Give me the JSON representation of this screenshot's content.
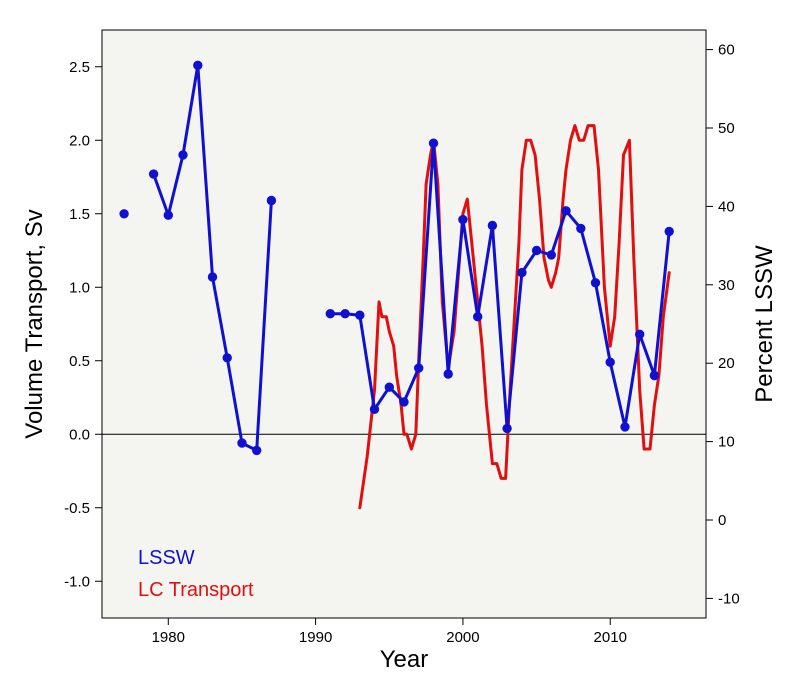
{
  "chart_data": {
    "type": "line",
    "xlabel": "Year",
    "ylabel_left": "Volume Transport, Sv",
    "ylabel_right": "Percent LSSW",
    "xlim": [
      1975.5,
      2016.5
    ],
    "ylim_left": [
      -1.25,
      2.75
    ],
    "ylim_right": [
      -12.5,
      62.5
    ],
    "x_ticks": [
      1980,
      1990,
      2000,
      2010
    ],
    "x_tick_labels": [
      "1980",
      "1990",
      "2000",
      "2010"
    ],
    "y_left_ticks": [
      -1.0,
      -0.5,
      0.0,
      0.5,
      1.0,
      1.5,
      2.0,
      2.5
    ],
    "y_left_tick_labels": [
      "-1.0",
      "-0.5",
      "0.0",
      "0.5",
      "1.0",
      "1.5",
      "2.0",
      "2.5"
    ],
    "y_right_ticks": [
      -10,
      0,
      10,
      20,
      30,
      40,
      50,
      60
    ],
    "y_right_tick_labels": [
      "-10",
      "0",
      "10",
      "20",
      "30",
      "40",
      "50",
      "60"
    ],
    "zero_line": 0,
    "grid": false,
    "plot_background": "#f4f4f0",
    "legend_position": "bottom-left",
    "series": [
      {
        "name": "LSSW",
        "axis": "left",
        "color": "#1010d0",
        "markers": true,
        "segments": [
          [
            [
              1977,
              1.5
            ]
          ],
          [
            [
              1979,
              1.77
            ],
            [
              1980,
              1.49
            ],
            [
              1981,
              1.9
            ],
            [
              1982,
              2.51
            ],
            [
              1983,
              1.07
            ],
            [
              1984,
              0.52
            ],
            [
              1985,
              -0.06
            ],
            [
              1986,
              -0.11
            ],
            [
              1987,
              1.59
            ]
          ],
          [
            [
              1991,
              0.82
            ],
            [
              1992,
              0.82
            ],
            [
              1993,
              0.81
            ],
            [
              1994,
              0.17
            ],
            [
              1995,
              0.32
            ],
            [
              1996,
              0.22
            ],
            [
              1997,
              0.45
            ],
            [
              1998,
              1.98
            ],
            [
              1999,
              0.41
            ],
            [
              2000,
              1.46
            ],
            [
              2001,
              0.8
            ],
            [
              2002,
              1.42
            ],
            [
              2003,
              0.04
            ],
            [
              2004,
              1.1
            ],
            [
              2005,
              1.25
            ],
            [
              2006,
              1.22
            ],
            [
              2007,
              1.52
            ],
            [
              2008,
              1.4
            ],
            [
              2009,
              1.03
            ],
            [
              2010,
              0.49
            ],
            [
              2011,
              0.05
            ],
            [
              2012,
              0.68
            ],
            [
              2013,
              0.4
            ],
            [
              2014,
              1.38
            ]
          ]
        ]
      },
      {
        "name": "LC Transport",
        "axis": "left",
        "color": "#e01010",
        "markers": false,
        "segments": [
          [
            [
              1993,
              -0.5
            ],
            [
              1993.5,
              -0.15
            ],
            [
              1994,
              0.3
            ],
            [
              1994.3,
              0.9
            ],
            [
              1994.5,
              0.8
            ],
            [
              1994.8,
              0.8
            ],
            [
              1995,
              0.7
            ],
            [
              1995.3,
              0.6
            ],
            [
              1995.5,
              0.4
            ],
            [
              1995.8,
              0.2
            ],
            [
              1996,
              0.0
            ],
            [
              1996.2,
              0.0
            ],
            [
              1996.5,
              -0.1
            ],
            [
              1996.8,
              0.0
            ],
            [
              1997,
              0.5
            ],
            [
              1997.3,
              1.2
            ],
            [
              1997.5,
              1.7
            ],
            [
              1997.8,
              1.9
            ],
            [
              1998,
              2.0
            ],
            [
              1998.3,
              1.7
            ],
            [
              1998.6,
              0.9
            ],
            [
              1999,
              0.45
            ],
            [
              1999.4,
              0.7
            ],
            [
              1999.7,
              1.1
            ],
            [
              2000,
              1.5
            ],
            [
              2000.3,
              1.6
            ],
            [
              2000.6,
              1.3
            ],
            [
              2001,
              0.9
            ],
            [
              2001.3,
              0.6
            ],
            [
              2001.6,
              0.2
            ],
            [
              2002,
              -0.2
            ],
            [
              2002.3,
              -0.2
            ],
            [
              2002.6,
              -0.3
            ],
            [
              2002.9,
              -0.3
            ],
            [
              2003,
              -0.1
            ],
            [
              2003.2,
              0.3
            ],
            [
              2003.5,
              0.8
            ],
            [
              2003.8,
              1.3
            ],
            [
              2004,
              1.8
            ],
            [
              2004.3,
              2.0
            ],
            [
              2004.6,
              2.0
            ],
            [
              2004.9,
              1.9
            ],
            [
              2005.2,
              1.6
            ],
            [
              2005.5,
              1.2
            ],
            [
              2005.8,
              1.05
            ],
            [
              2006,
              1.0
            ],
            [
              2006.3,
              1.1
            ],
            [
              2006.5,
              1.2
            ],
            [
              2006.8,
              1.6
            ],
            [
              2007,
              1.8
            ],
            [
              2007.3,
              2.0
            ],
            [
              2007.6,
              2.1
            ],
            [
              2007.9,
              2.0
            ],
            [
              2008.2,
              2.0
            ],
            [
              2008.5,
              2.1
            ],
            [
              2008.9,
              2.1
            ],
            [
              2009.2,
              1.8
            ],
            [
              2009.6,
              1.0
            ],
            [
              2010,
              0.6
            ],
            [
              2010.3,
              0.8
            ],
            [
              2010.6,
              1.3
            ],
            [
              2010.9,
              1.9
            ],
            [
              2011.3,
              2.0
            ],
            [
              2011.6,
              1.2
            ],
            [
              2012,
              0.3
            ],
            [
              2012.3,
              -0.1
            ],
            [
              2012.7,
              -0.1
            ],
            [
              2013,
              0.2
            ],
            [
              2013.3,
              0.4
            ],
            [
              2013.6,
              0.8
            ],
            [
              2014,
              1.1
            ]
          ]
        ]
      }
    ]
  }
}
